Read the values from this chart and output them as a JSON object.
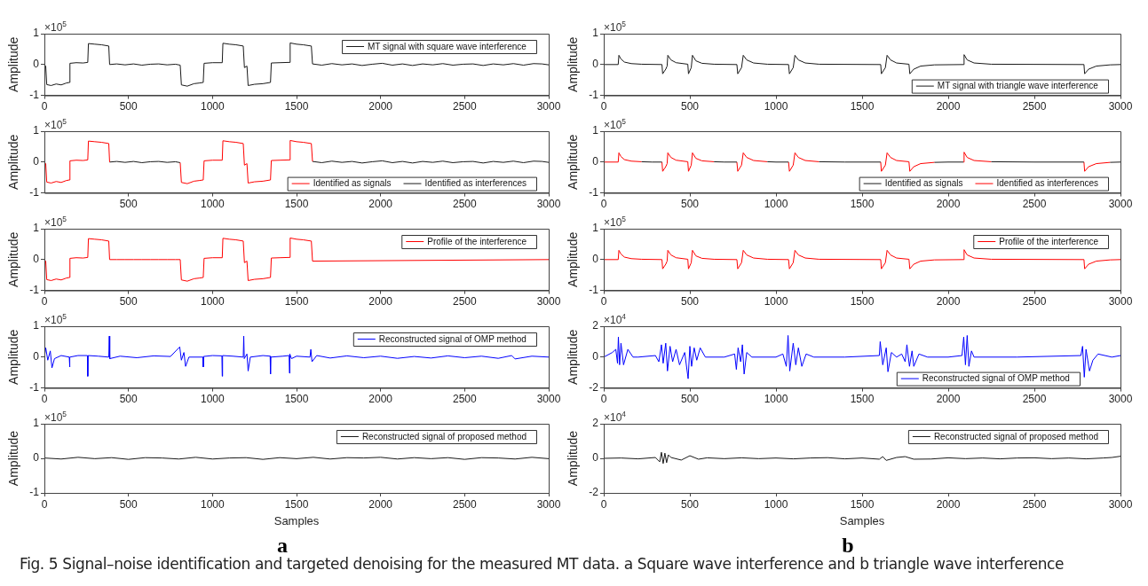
{
  "chart_data": [
    {
      "type": "line",
      "ylabel": "Amplitude",
      "xlim": [
        0,
        3000
      ],
      "xticks": [
        0,
        500,
        1000,
        1500,
        2000,
        2500,
        3000
      ],
      "ylim": [
        -1,
        1
      ],
      "yticks": [
        -1,
        0,
        1
      ],
      "legend": "top right",
      "annotations": [
        "×10$^{5}$"
      ],
      "series": [
        {
          "name": "MT signal with square wave interference",
          "color": "#1a1a1a",
          "x": [
            0,
            8,
            14,
            40,
            70,
            100,
            130,
            148,
            152,
            190,
            230,
            258,
            262,
            300,
            340,
            383,
            388,
            430,
            480,
            530,
            580,
            630,
            680,
            730,
            780,
            808,
            815,
            850,
            890,
            920,
            945,
            950,
            1000,
            1058,
            1062,
            1100,
            1140,
            1183,
            1190,
            1205,
            1212,
            1250,
            1300,
            1345,
            1350,
            1400,
            1458,
            1462,
            1500,
            1540,
            1588,
            1595,
            1650,
            1710,
            1770,
            1830,
            1890,
            1950,
            2010,
            2070,
            2130,
            2190,
            2250,
            2310,
            2370,
            2430,
            2490,
            2550,
            2610,
            2670,
            2730,
            2790,
            2850,
            2910,
            2960,
            3000
          ],
          "values": [
            0,
            -0.05,
            -0.65,
            -0.68,
            -0.63,
            -0.66,
            -0.6,
            -0.58,
            0.04,
            0.06,
            0.05,
            0.07,
            0.68,
            0.66,
            0.64,
            0.6,
            0,
            0.02,
            -0.01,
            0.02,
            -0.02,
            0.01,
            0.02,
            -0.01,
            0.01,
            -0.02,
            -0.66,
            -0.7,
            -0.62,
            -0.6,
            -0.58,
            0.04,
            0.06,
            0.06,
            0.69,
            0.66,
            0.64,
            0.6,
            -0.1,
            -0.05,
            -0.68,
            -0.64,
            -0.62,
            -0.58,
            0.05,
            0.06,
            0.07,
            0.7,
            0.66,
            0.64,
            0.6,
            0.02,
            -0.02,
            0.03,
            -0.01,
            0.02,
            -0.03,
            0.01,
            0.04,
            -0.02,
            0.02,
            -0.03,
            0.02,
            -0.01,
            0.03,
            -0.02,
            0.01,
            0.02,
            -0.03,
            0.02,
            -0.01,
            0.03,
            -0.02,
            0.03,
            0.02,
            -0.01
          ]
        }
      ]
    },
    {
      "type": "line",
      "ylabel": "Amplitude",
      "xlim": [
        0,
        3000
      ],
      "xticks": [
        500,
        1000,
        1500,
        2000,
        2500,
        3000
      ],
      "ylim": [
        -1,
        1
      ],
      "yticks": [
        -1,
        0,
        1
      ],
      "legend": "bottom right",
      "annotations": [
        "×10$^{5}$"
      ],
      "series": [
        {
          "name": "Identified as signals",
          "color": "#ff0000",
          "x": [
            0,
            8,
            14,
            40,
            70,
            100,
            130,
            148,
            152,
            190,
            230,
            258,
            262,
            300,
            340,
            383,
            388,
            600,
            808,
            815,
            850,
            890,
            920,
            945,
            950,
            1000,
            1058,
            1062,
            1100,
            1140,
            1183,
            1190,
            1205,
            1212,
            1250,
            1300,
            1345,
            1350,
            1400,
            1458,
            1462,
            1500,
            1540,
            1588,
            1595
          ],
          "values": [
            0,
            -0.05,
            -0.65,
            -0.68,
            -0.63,
            -0.66,
            -0.6,
            -0.58,
            0.04,
            0.06,
            0.05,
            0.07,
            0.68,
            0.66,
            0.64,
            0.6,
            0,
            null,
            -0.02,
            -0.66,
            -0.7,
            -0.62,
            -0.6,
            -0.58,
            0.04,
            0.06,
            0.06,
            0.69,
            0.66,
            0.64,
            0.6,
            -0.1,
            -0.05,
            -0.68,
            -0.64,
            -0.62,
            -0.58,
            0.05,
            0.06,
            0.07,
            0.7,
            0.66,
            0.64,
            0.6,
            0.02
          ]
        },
        {
          "name": "Identified as interferences",
          "color": "#1a1a1a",
          "x": [
            388,
            430,
            480,
            530,
            580,
            630,
            680,
            730,
            780,
            808,
            1200,
            1595,
            1650,
            1710,
            1770,
            1830,
            1890,
            1950,
            2010,
            2070,
            2130,
            2190,
            2250,
            2310,
            2370,
            2430,
            2490,
            2550,
            2610,
            2670,
            2730,
            2790,
            2850,
            2910,
            2960,
            3000
          ],
          "values": [
            0,
            0.02,
            -0.01,
            0.02,
            -0.02,
            0.01,
            0.02,
            -0.01,
            0.01,
            -0.02,
            null,
            0.02,
            -0.02,
            0.03,
            -0.01,
            0.02,
            -0.03,
            0.01,
            0.04,
            -0.02,
            0.02,
            -0.03,
            0.02,
            -0.01,
            0.03,
            -0.02,
            0.01,
            0.02,
            -0.03,
            0.02,
            -0.01,
            0.03,
            -0.02,
            0.03,
            0.02,
            -0.01
          ]
        }
      ]
    },
    {
      "type": "line",
      "ylabel": "Amplitude",
      "xlim": [
        0,
        3000
      ],
      "xticks": [
        0,
        500,
        1000,
        1500,
        2000,
        2500,
        3000
      ],
      "ylim": [
        -1,
        1
      ],
      "yticks": [
        -1,
        0,
        1
      ],
      "legend": "top right",
      "annotations": [
        "×10$^{5}$"
      ],
      "series": [
        {
          "name": "Profile of the interference",
          "color": "#ff0000",
          "x": [
            0,
            8,
            14,
            40,
            70,
            100,
            130,
            148,
            152,
            190,
            230,
            258,
            262,
            300,
            340,
            383,
            388,
            430,
            480,
            530,
            580,
            630,
            680,
            730,
            780,
            808,
            815,
            850,
            890,
            920,
            945,
            950,
            1000,
            1058,
            1062,
            1100,
            1140,
            1183,
            1190,
            1205,
            1212,
            1250,
            1300,
            1345,
            1350,
            1400,
            1458,
            1462,
            1500,
            1540,
            1588,
            1595,
            3000
          ],
          "values": [
            0,
            -0.05,
            -0.65,
            -0.68,
            -0.63,
            -0.66,
            -0.6,
            -0.58,
            0.04,
            0.06,
            0.05,
            0.07,
            0.68,
            0.66,
            0.64,
            0.6,
            0,
            0,
            0,
            0,
            0,
            0,
            0,
            0,
            0,
            0,
            -0.66,
            -0.7,
            -0.62,
            -0.6,
            -0.58,
            0.04,
            0.06,
            0.06,
            0.69,
            0.66,
            0.64,
            0.6,
            -0.1,
            -0.05,
            -0.68,
            -0.64,
            -0.62,
            -0.58,
            0.05,
            0.06,
            0.07,
            0.7,
            0.66,
            0.64,
            0.6,
            -0.05,
            0
          ]
        }
      ]
    },
    {
      "type": "line",
      "ylabel": "Amplitude",
      "xlim": [
        0,
        3000
      ],
      "xticks": [
        0,
        500,
        1000,
        1500,
        2000,
        2500,
        3000
      ],
      "ylim": [
        -1,
        1
      ],
      "yticks": [
        -1,
        0,
        1
      ],
      "legend": "top right",
      "annotations": [
        "×10$^{5}$"
      ],
      "series": [
        {
          "name": "Reconstructed signal of OMP method",
          "color": "#0000ff",
          "x": [
            0,
            8,
            20,
            35,
            45,
            60,
            100,
            148,
            150,
            152,
            200,
            256,
            258,
            260,
            320,
            383,
            386,
            389,
            450,
            550,
            650,
            750,
            805,
            815,
            830,
            840,
            860,
            943,
            945,
            947,
            1000,
            1056,
            1058,
            1060,
            1120,
            1183,
            1186,
            1189,
            1205,
            1212,
            1225,
            1300,
            1343,
            1345,
            1347,
            1420,
            1456,
            1458,
            1460,
            1470,
            1500,
            1580,
            1585,
            1592,
            1620,
            1700,
            1800,
            1900,
            2000,
            2100,
            2200,
            2300,
            2400,
            2500,
            2600,
            2700,
            2780,
            2800,
            2900,
            3000
          ],
          "values": [
            0,
            0.3,
            -0.1,
            0.2,
            -0.35,
            -0.05,
            0.05,
            0,
            -0.32,
            0,
            0.05,
            0.05,
            -0.62,
            0.05,
            0.03,
            0,
            0.68,
            -0.05,
            0.03,
            -0.02,
            0.04,
            0.02,
            0.33,
            -0.1,
            0.15,
            -0.3,
            0,
            0,
            -0.32,
            0.02,
            0.05,
            0.04,
            -0.62,
            0.05,
            0.03,
            0,
            0.68,
            -0.05,
            0.1,
            -0.45,
            0,
            0.05,
            0.03,
            -0.55,
            0,
            0.03,
            0.05,
            -0.52,
            0.1,
            -0.05,
            0.03,
            0,
            0.25,
            -0.15,
            0.05,
            -0.03,
            0.04,
            -0.02,
            0.03,
            -0.04,
            0.02,
            -0.03,
            0.04,
            -0.02,
            0.03,
            -0.04,
            0.05,
            -0.06,
            0.03,
            0
          ]
        }
      ]
    },
    {
      "type": "line",
      "xlabel": "Samples",
      "ylabel": "Amplitude",
      "xlim": [
        0,
        3000
      ],
      "xticks": [
        0,
        500,
        1000,
        1500,
        2000,
        2500,
        3000
      ],
      "ylim": [
        -1,
        1
      ],
      "yticks": [
        -1,
        0,
        1
      ],
      "legend": "top right",
      "annotations": [
        "×10$^{5}$",
        "a",
        "Fig. 5  Signal–noise identification and targeted denoising for the measured MT data. a Square wave interference and b triangle wave interference"
      ],
      "series": [
        {
          "name": "Reconstructed signal of proposed method",
          "color": "#1a1a1a",
          "x": [
            0,
            100,
            200,
            300,
            400,
            500,
            600,
            700,
            800,
            900,
            1000,
            1100,
            1200,
            1300,
            1400,
            1500,
            1600,
            1700,
            1800,
            1900,
            2000,
            2100,
            2200,
            2300,
            2400,
            2500,
            2600,
            2700,
            2800,
            2900,
            3000
          ],
          "values": [
            0.01,
            -0.02,
            0.03,
            -0.01,
            0.02,
            -0.03,
            0.02,
            0.01,
            -0.02,
            0.03,
            -0.02,
            0.01,
            0.02,
            -0.03,
            0.02,
            -0.01,
            0.03,
            -0.02,
            0.02,
            0.01,
            0.03,
            -0.02,
            0.02,
            -0.01,
            0.02,
            -0.03,
            0.02,
            0.01,
            -0.02,
            0.03,
            -0.01
          ]
        }
      ]
    },
    {
      "type": "line",
      "ylabel": "Amplitude",
      "xlim": [
        0,
        3000
      ],
      "xticks": [
        0,
        500,
        1000,
        1500,
        2000,
        2500,
        3000
      ],
      "ylim": [
        -1,
        1
      ],
      "yticks": [
        -1,
        0,
        1
      ],
      "legend": "bottom right",
      "annotations": [
        "×10$^{5}$"
      ],
      "series": [
        {
          "name": "MT signal with triangle wave interference",
          "color": "#1a1a1a",
          "x": [
            0,
            84,
            88,
            100,
            120,
            160,
            220,
            338,
            342,
            360,
            368,
            372,
            390,
            420,
            488,
            492,
            508,
            515,
            535,
            570,
            640,
            773,
            778,
            800,
            810,
            830,
            870,
            950,
            1073,
            1078,
            1100,
            1110,
            1130,
            1170,
            1250,
            1608,
            1612,
            1635,
            1645,
            1665,
            1700,
            1772,
            1777,
            1800,
            1840,
            1920,
            2088,
            2092,
            2110,
            2150,
            2250,
            2788,
            2792,
            2815,
            2860,
            2940,
            3000
          ],
          "values": [
            0,
            0,
            0.3,
            0.18,
            0.08,
            0.03,
            0.01,
            0,
            -0.3,
            -0.15,
            -0.05,
            0.3,
            0.15,
            0.06,
            0.01,
            -0.3,
            -0.1,
            0.3,
            0.12,
            0.04,
            0.01,
            0,
            -0.3,
            -0.1,
            0.3,
            0.15,
            0.05,
            0.01,
            0,
            -0.3,
            -0.1,
            0.3,
            0.15,
            0.05,
            0.01,
            0,
            -0.3,
            -0.1,
            0.3,
            0.15,
            0.05,
            0.01,
            -0.3,
            -0.15,
            -0.05,
            -0.01,
            0,
            0.32,
            0.15,
            0.05,
            0.01,
            0,
            -0.3,
            -0.15,
            -0.05,
            -0.01,
            0
          ]
        }
      ]
    },
    {
      "type": "line",
      "ylabel": "Amplitude",
      "xlim": [
        0,
        3000
      ],
      "xticks": [
        0,
        500,
        1000,
        1500,
        2000,
        2500,
        3000
      ],
      "ylim": [
        -1,
        1
      ],
      "yticks": [
        -1,
        0,
        1
      ],
      "legend": "bottom right",
      "annotations": [
        "×10$^{5}$"
      ],
      "series": [
        {
          "name": "Identified as signals",
          "color": "#1a1a1a",
          "x": [
            220,
            280,
            338,
            500,
            640,
            700,
            773,
            900,
            950,
            1000,
            1073,
            1200,
            1250,
            1400,
            1608,
            1800,
            1920,
            2000,
            2088,
            2200,
            2250,
            2500,
            2788,
            2900,
            2940,
            3000
          ],
          "values": [
            0.01,
            0,
            0,
            null,
            0.01,
            0,
            0,
            null,
            0.01,
            0,
            0,
            null,
            0.01,
            0,
            0,
            null,
            -0.01,
            0,
            0,
            null,
            0.01,
            0,
            0,
            null,
            -0.01,
            0
          ]
        },
        {
          "name": "Identified as interferences",
          "color": "#ff0000",
          "x": [
            0,
            84,
            88,
            100,
            120,
            160,
            220,
            280,
            338,
            342,
            360,
            368,
            372,
            390,
            420,
            488,
            492,
            508,
            515,
            535,
            570,
            640,
            700,
            773,
            778,
            800,
            810,
            830,
            870,
            950,
            1000,
            1073,
            1078,
            1100,
            1110,
            1130,
            1170,
            1250,
            1400,
            1608,
            1612,
            1635,
            1645,
            1665,
            1700,
            1772,
            1777,
            1800,
            1840,
            1920,
            2000,
            2088,
            2092,
            2110,
            2150,
            2250,
            2500,
            2788,
            2792,
            2815,
            2860,
            2940
          ],
          "values": [
            0,
            0,
            0.3,
            0.18,
            0.08,
            0.03,
            0.01,
            null,
            0,
            -0.3,
            -0.15,
            -0.05,
            0.3,
            0.15,
            0.06,
            0.01,
            -0.3,
            -0.1,
            0.3,
            0.12,
            0.04,
            0.01,
            null,
            0,
            -0.3,
            -0.1,
            0.3,
            0.15,
            0.05,
            0.01,
            null,
            0,
            -0.3,
            -0.1,
            0.3,
            0.15,
            0.05,
            0.01,
            null,
            0,
            -0.3,
            -0.1,
            0.3,
            0.15,
            0.05,
            0.01,
            -0.3,
            -0.15,
            -0.05,
            -0.01,
            null,
            0,
            0.32,
            0.15,
            0.05,
            0.01,
            null,
            0,
            -0.3,
            -0.15,
            -0.05,
            -0.01
          ]
        }
      ]
    },
    {
      "type": "line",
      "ylabel": "Amplitude",
      "xlim": [
        0,
        3000
      ],
      "xticks": [
        0,
        500,
        1000,
        1500,
        2000,
        2500,
        3000
      ],
      "ylim": [
        -1,
        1
      ],
      "yticks": [
        -1,
        0,
        1
      ],
      "legend": "top right",
      "annotations": [
        "×10$^{5}$"
      ],
      "series": [
        {
          "name": "Profile of the interference",
          "color": "#ff0000",
          "x": [
            0,
            84,
            88,
            100,
            120,
            160,
            220,
            338,
            342,
            360,
            368,
            372,
            390,
            420,
            488,
            492,
            508,
            515,
            535,
            570,
            640,
            773,
            778,
            800,
            810,
            830,
            870,
            950,
            1073,
            1078,
            1100,
            1110,
            1130,
            1170,
            1250,
            1608,
            1612,
            1635,
            1645,
            1665,
            1700,
            1772,
            1777,
            1800,
            1840,
            1920,
            2088,
            2092,
            2110,
            2150,
            2250,
            2788,
            2792,
            2815,
            2860,
            2940,
            3000
          ],
          "values": [
            0,
            0,
            0.3,
            0.18,
            0.08,
            0.03,
            0.01,
            0,
            -0.3,
            -0.15,
            -0.05,
            0.3,
            0.15,
            0.06,
            0.01,
            -0.3,
            -0.1,
            0.3,
            0.12,
            0.04,
            0.01,
            0,
            -0.3,
            -0.1,
            0.3,
            0.15,
            0.05,
            0.01,
            0,
            -0.3,
            -0.1,
            0.3,
            0.15,
            0.05,
            0.01,
            0,
            -0.3,
            -0.1,
            0.3,
            0.15,
            0.05,
            0.01,
            -0.3,
            -0.15,
            -0.05,
            -0.01,
            0,
            0.32,
            0.15,
            0.05,
            0.01,
            0,
            -0.3,
            -0.15,
            -0.05,
            -0.01,
            0
          ]
        }
      ]
    },
    {
      "type": "line",
      "ylabel": "Amplitude",
      "xlim": [
        0,
        3000
      ],
      "xticks": [
        0,
        500,
        1000,
        1500,
        2000,
        2500,
        3000
      ],
      "ylim": [
        -2,
        2
      ],
      "yticks": [
        -2,
        0,
        2
      ],
      "legend": "bottom right",
      "annotations": [
        "×10$^{4}$"
      ],
      "series": [
        {
          "name": "Reconstructed signal of OMP method",
          "color": "#0000ff",
          "x": [
            0,
            50,
            70,
            80,
            85,
            92,
            100,
            115,
            140,
            170,
            200,
            300,
            320,
            335,
            345,
            360,
            370,
            385,
            400,
            420,
            440,
            470,
            490,
            500,
            510,
            525,
            540,
            560,
            590,
            700,
            760,
            770,
            780,
            795,
            805,
            815,
            830,
            860,
            1000,
            1040,
            1060,
            1070,
            1080,
            1100,
            1115,
            1130,
            1150,
            1175,
            1220,
            1400,
            1600,
            1605,
            1620,
            1640,
            1650,
            1670,
            1700,
            1730,
            1750,
            1760,
            1775,
            1790,
            1800,
            1830,
            1880,
            2000,
            2080,
            2090,
            2100,
            2110,
            2120,
            2135,
            2150,
            2400,
            2770,
            2780,
            2790,
            2800,
            2820,
            2840,
            2870,
            2950,
            3000
          ],
          "values": [
            0,
            0.3,
            0.5,
            -0.4,
            1.3,
            -0.5,
            0.9,
            -0.5,
            0.5,
            0,
            0,
            0.1,
            -0.3,
            0.8,
            -0.4,
            0.9,
            -0.9,
            0.7,
            -0.3,
            0.5,
            -0.5,
            0.3,
            -1.4,
            0.7,
            -0.6,
            0.6,
            -0.2,
            0.6,
            0,
            0,
            0.2,
            -0.8,
            0.6,
            -0.3,
            0.8,
            -1.1,
            0.3,
            0,
            0,
            0.2,
            -0.6,
            1.4,
            -0.9,
            0.9,
            -0.5,
            0.6,
            -0.6,
            0.2,
            0,
            0,
            0.1,
            1.0,
            -0.5,
            0.6,
            -0.95,
            0.3,
            0,
            0.2,
            -0.3,
            0.8,
            -0.6,
            0.4,
            -0.6,
            0.2,
            0,
            0,
            0.1,
            1.3,
            -0.5,
            1.4,
            -0.6,
            0.4,
            0,
            0,
            0.1,
            0.7,
            -1.3,
            0.5,
            -0.9,
            -0.2,
            0.2,
            0,
            0.1
          ]
        }
      ]
    },
    {
      "type": "line",
      "xlabel": "Samples",
      "ylabel": "Amplitude",
      "xlim": [
        0,
        3000
      ],
      "xticks": [
        0,
        500,
        1000,
        1500,
        2000,
        2500,
        3000
      ],
      "ylim": [
        -2,
        2
      ],
      "yticks": [
        -2,
        0,
        2
      ],
      "legend": "top right",
      "annotations": [
        "×10$^{4}$",
        "b"
      ],
      "series": [
        {
          "name": "Reconstructed signal of proposed method",
          "color": "#1a1a1a",
          "x": [
            0,
            100,
            200,
            300,
            325,
            335,
            345,
            355,
            365,
            375,
            390,
            450,
            500,
            550,
            600,
            700,
            800,
            900,
            1000,
            1100,
            1200,
            1300,
            1400,
            1500,
            1600,
            1620,
            1640,
            1700,
            1750,
            1800,
            1900,
            2000,
            2100,
            2200,
            2300,
            2400,
            2500,
            2600,
            2700,
            2800,
            2900,
            2950,
            3000
          ],
          "values": [
            0,
            0.02,
            -0.03,
            0.05,
            -0.2,
            0.35,
            -0.3,
            0.3,
            -0.25,
            0.2,
            0.05,
            -0.1,
            0.15,
            -0.05,
            0.03,
            -0.02,
            0.03,
            -0.02,
            0.02,
            -0.03,
            0.02,
            0.04,
            -0.03,
            0.02,
            -0.05,
            0.1,
            -0.12,
            0.05,
            0.1,
            -0.05,
            -0.04,
            0.03,
            -0.02,
            0.02,
            -0.03,
            0.02,
            0.03,
            -0.02,
            0.02,
            -0.03,
            0.02,
            0.05,
            0.12
          ]
        }
      ]
    }
  ]
}
